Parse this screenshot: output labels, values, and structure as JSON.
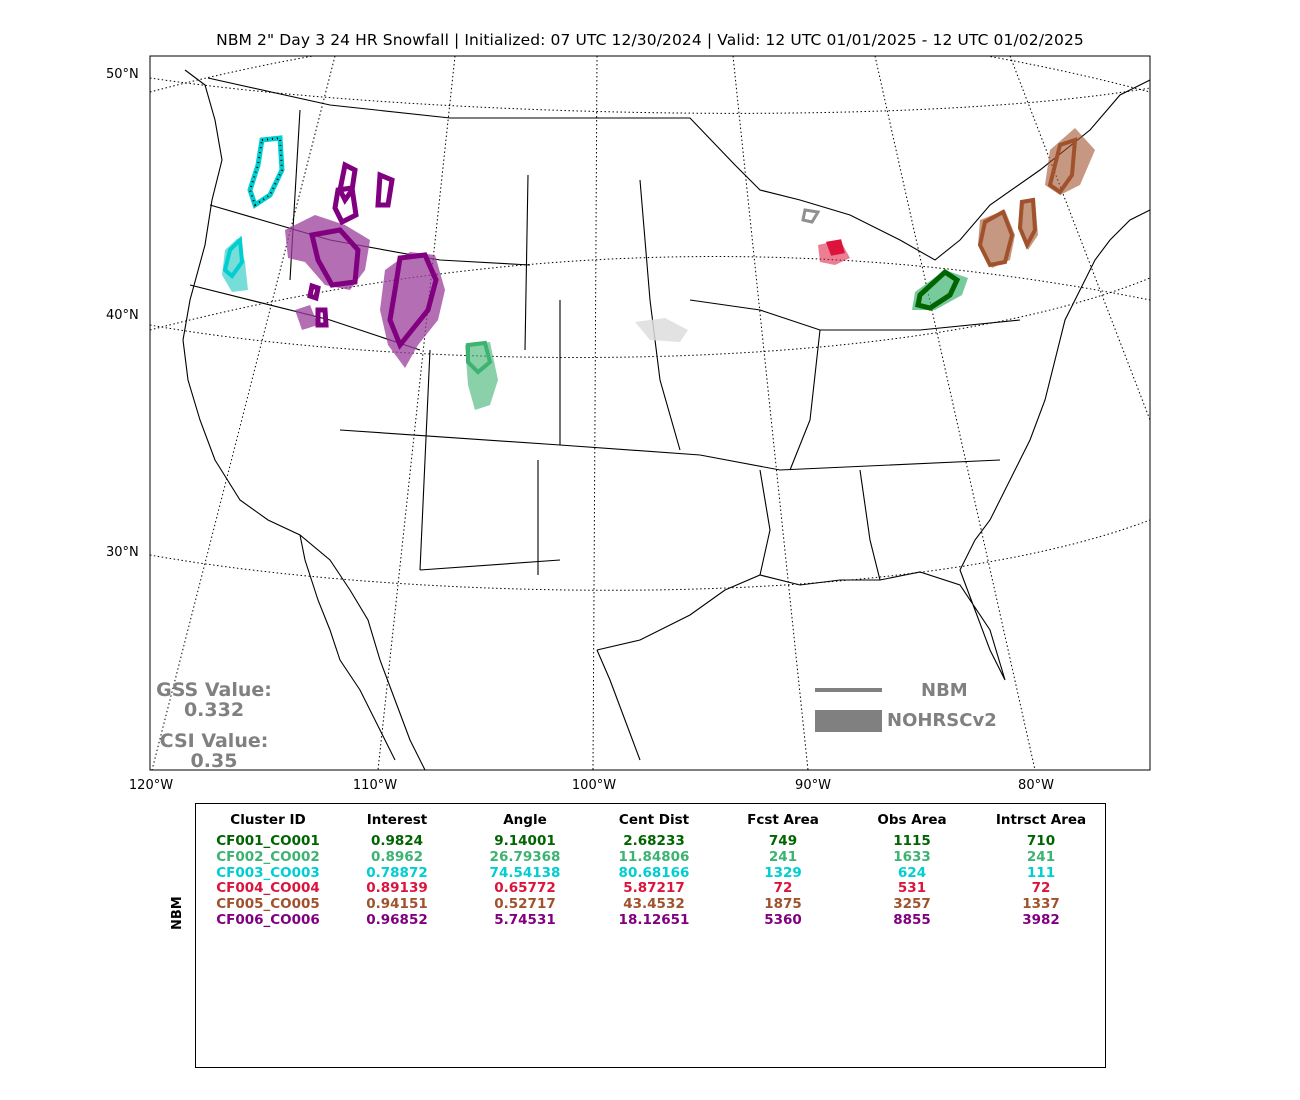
{
  "chart_data": {
    "type": "map",
    "title": "NBM 2\" Day 3 24 HR Snowfall | Initialized: 07 UTC 12/30/2024 | Valid: 12 UTC 01/01/2025 - 12 UTC 01/02/2025",
    "lat_labels": [
      "50°N",
      "40°N",
      "30°N"
    ],
    "lon_labels": [
      "120°W",
      "110°W",
      "100°W",
      "90°W",
      "80°W"
    ],
    "scores": {
      "gss_label": "GSS Value:",
      "gss_value": "0.332",
      "csi_label": "CSI Value:",
      "csi_value": "0.35"
    },
    "legend": {
      "line_label": "NBM",
      "fill_label": "NOHRSCv2",
      "color": "#808080"
    },
    "table": {
      "side_label": "NBM",
      "columns": [
        "Cluster ID",
        "Interest",
        "Angle",
        "Cent Dist",
        "Fcst Area",
        "Obs Area",
        "Intrsct Area"
      ],
      "rows": [
        {
          "color": "#006400",
          "values": [
            "CF001_CO001",
            "0.9824",
            "9.14001",
            "2.68233",
            "749",
            "1115",
            "710"
          ]
        },
        {
          "color": "#3cb371",
          "values": [
            "CF002_CO002",
            "0.8962",
            "26.79368",
            "11.84806",
            "241",
            "1633",
            "241"
          ]
        },
        {
          "color": "#00ced1",
          "values": [
            "CF003_CO003",
            "0.78872",
            "74.54138",
            "80.68166",
            "1329",
            "624",
            "111"
          ]
        },
        {
          "color": "#dc143c",
          "values": [
            "CF004_CO004",
            "0.89139",
            "0.65772",
            "5.87217",
            "72",
            "531",
            "72"
          ]
        },
        {
          "color": "#a0522d",
          "values": [
            "CF005_CO005",
            "0.94151",
            "0.52717",
            "43.4532",
            "1875",
            "3257",
            "1337"
          ]
        },
        {
          "color": "#800080",
          "values": [
            "CF006_CO006",
            "0.96852",
            "5.74531",
            "18.12651",
            "5360",
            "8855",
            "3982"
          ]
        }
      ]
    }
  }
}
